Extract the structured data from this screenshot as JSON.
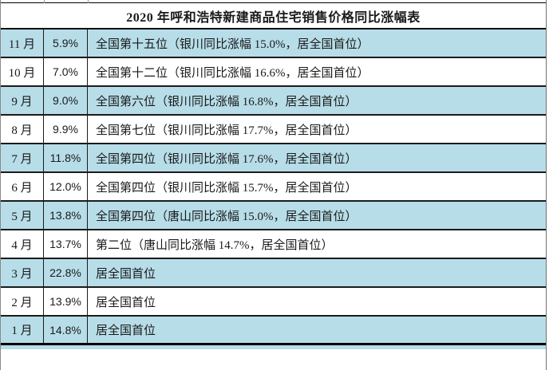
{
  "header": {
    "title": "2020 年呼和浩特新建商品住宅销售价格同比涨幅表"
  },
  "colors": {
    "highlight_row": "#b7dde8",
    "plain_row": "#ffffff",
    "grid_border": "#1b1b1b",
    "text": "#1a1a1a"
  },
  "chart_data": {
    "type": "table",
    "title": "2020 年呼和浩特新建商品住宅销售价格同比涨幅表",
    "rows": [
      [
        "11 月",
        "5.9%",
        "全国第十五位（银川同比涨幅 15.0%，居全国首位）"
      ],
      [
        "10 月",
        "7.0%",
        "全国第十二位（银川同比涨幅 16.6%，居全国首位）"
      ],
      [
        "9 月",
        "9.0%",
        "全国第六位（银川同比涨幅 16.8%，居全国首位）"
      ],
      [
        "8 月",
        "9.9%",
        "全国第七位（银川同比涨幅 17.7%，居全国首位）"
      ],
      [
        "7 月",
        "11.8%",
        "全国第四位（银川同比涨幅 17.6%，居全国首位）"
      ],
      [
        "6 月",
        "12.0%",
        "全国第四位（银川同比涨幅 15.7%，居全国首位）"
      ],
      [
        "5 月",
        "13.8%",
        "全国第四位（唐山同比涨幅 15.0%，居全国首位）"
      ],
      [
        "4 月",
        "13.7%",
        "第二位（唐山同比涨幅 14.7%，居全国首位）"
      ],
      [
        "3 月",
        "22.8%",
        "居全国首位"
      ],
      [
        "2 月",
        "13.9%",
        "居全国首位"
      ],
      [
        "1 月",
        "14.8%",
        "居全国首位"
      ]
    ]
  }
}
